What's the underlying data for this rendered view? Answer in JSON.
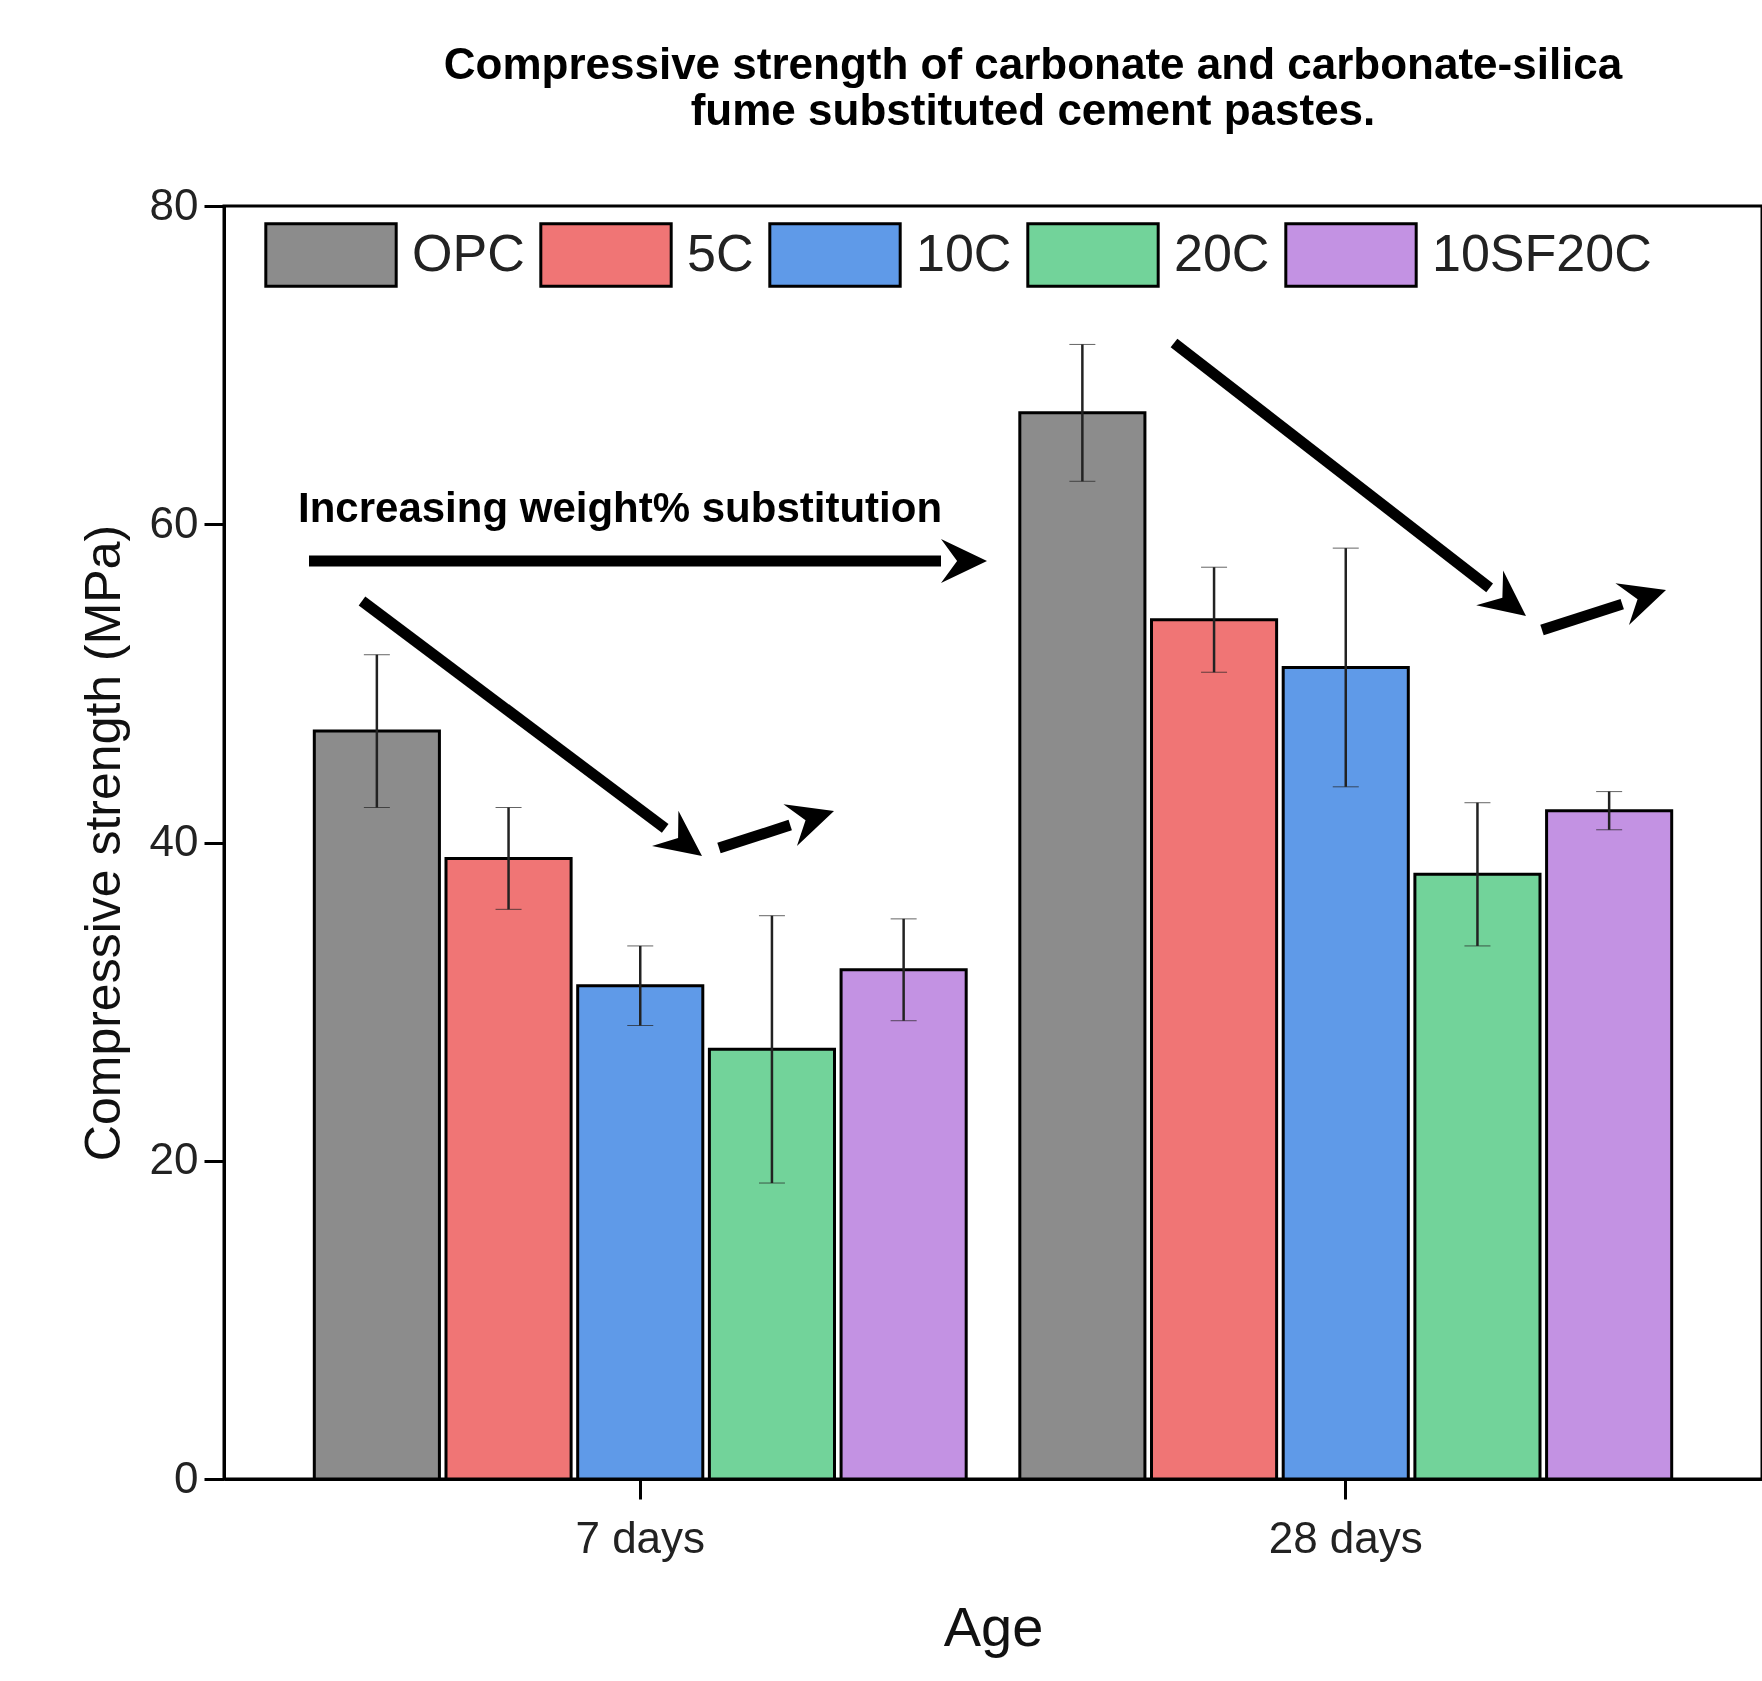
{
  "chart_data": {
    "type": "bar",
    "title": [
      "Compressive strength of carbonate and carbonate-silica",
      "fume substituted cement pastes."
    ],
    "xlabel": "Age",
    "ylabel": "Compressive strength (MPa)",
    "categories": [
      "7 days",
      "28 days"
    ],
    "series": [
      {
        "name": "OPC",
        "color": "#8c8c8c",
        "values": [
          47,
          67
        ],
        "errors": [
          4.8,
          4.3
        ]
      },
      {
        "name": "5C",
        "color": "#f07575",
        "values": [
          39,
          54
        ],
        "errors": [
          3.2,
          3.3
        ]
      },
      {
        "name": "10C",
        "color": "#5f9ae8",
        "values": [
          31,
          51
        ],
        "errors": [
          2.5,
          7.5
        ]
      },
      {
        "name": "20C",
        "color": "#72d39a",
        "values": [
          27,
          38
        ],
        "errors": [
          8.4,
          4.5
        ]
      },
      {
        "name": "10SF20C",
        "color": "#c392e3",
        "values": [
          32,
          42
        ],
        "errors": [
          3.2,
          1.2
        ]
      }
    ],
    "ylim": [
      0,
      80
    ],
    "yticks": [
      0,
      20,
      40,
      60,
      80
    ],
    "legend": "top",
    "grid": false,
    "annotations": [
      "Increasing weight% substitution"
    ]
  }
}
